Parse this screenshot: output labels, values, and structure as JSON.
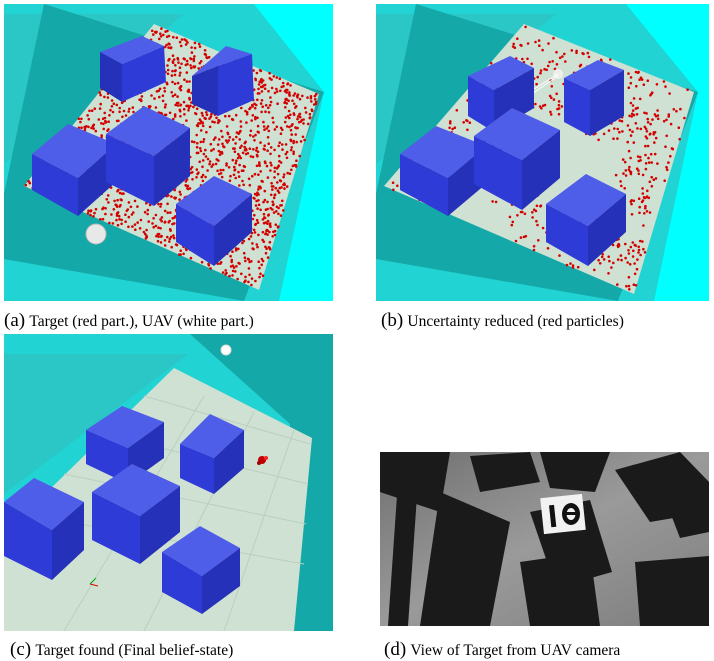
{
  "figure": {
    "panels": [
      {
        "id": "a",
        "label": "(a)",
        "caption": "Target (red part.), UAV (white part.)",
        "scene": "simulation",
        "particle_density": "dense",
        "uav_marker": "white-particle-cluster"
      },
      {
        "id": "b",
        "label": "(b)",
        "caption": "Uncertainty reduced (red particles)",
        "scene": "simulation",
        "particle_density": "sparse",
        "uav_marker": "white-particle-cluster"
      },
      {
        "id": "c",
        "label": "(c)",
        "caption": "Target found (Final belief-state)",
        "scene": "simulation",
        "particle_density": "converged",
        "uav_marker": "white-particle-cluster"
      },
      {
        "id": "d",
        "label": "(d)",
        "caption": "View of Target from UAV camera",
        "scene": "camera-photo",
        "target_sign": "I O"
      }
    ],
    "colors": {
      "wall": "#22d3d3",
      "wall_dark": "#14a8a8",
      "floor": "#cfe1d3",
      "box_top": "#4f5ee8",
      "box_side": "#2f3bd6",
      "particle": "#d40000",
      "sky": "#00ffff"
    }
  }
}
